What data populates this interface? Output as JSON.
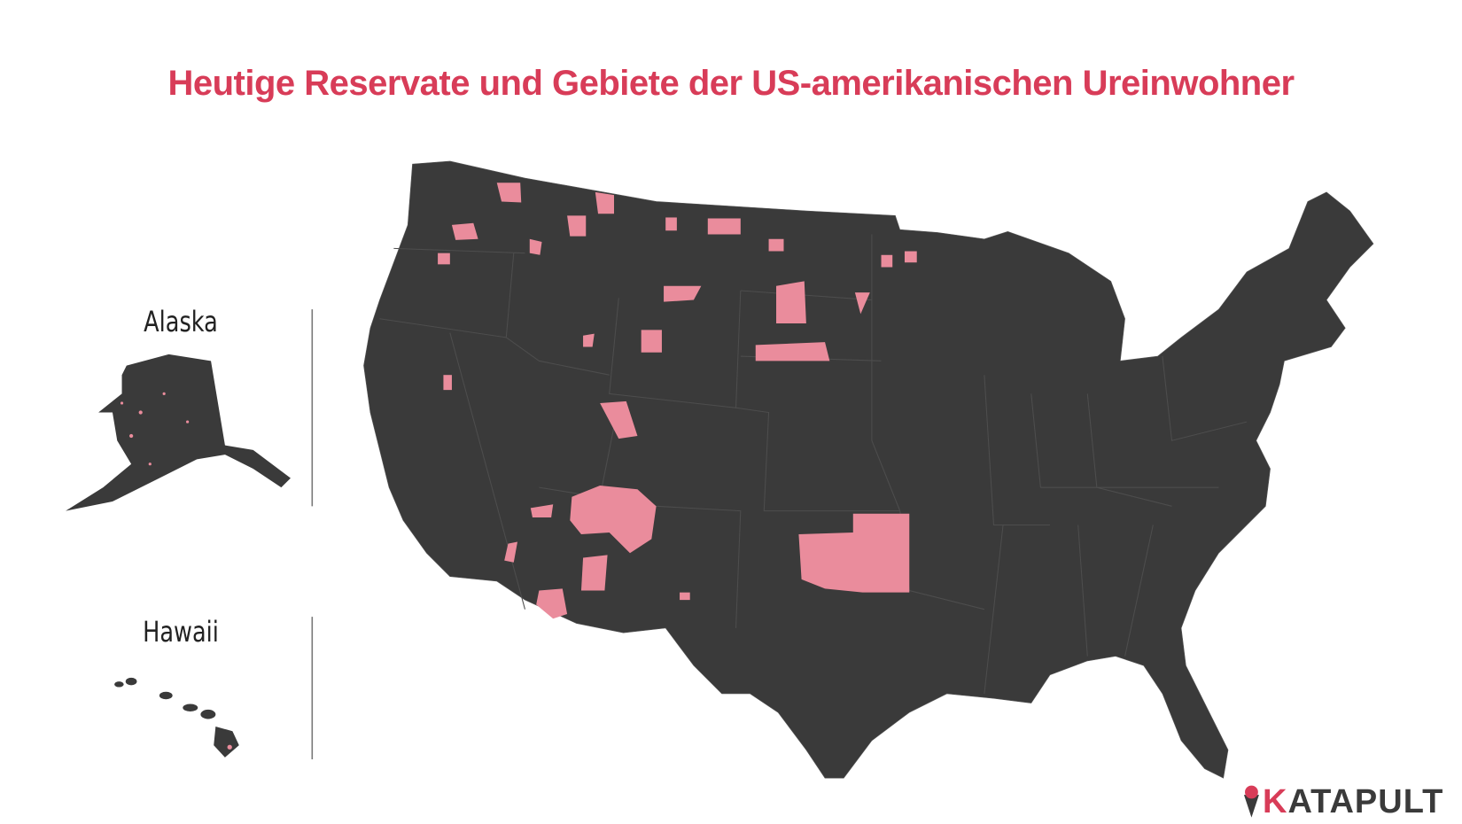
{
  "title": "Heutige Reservate und Gebiete der US-amerikanischen Ureinwohner",
  "insets": [
    {
      "label": "Alaska"
    },
    {
      "label": "Hawaii"
    }
  ],
  "logo": "KATAPULT"
}
